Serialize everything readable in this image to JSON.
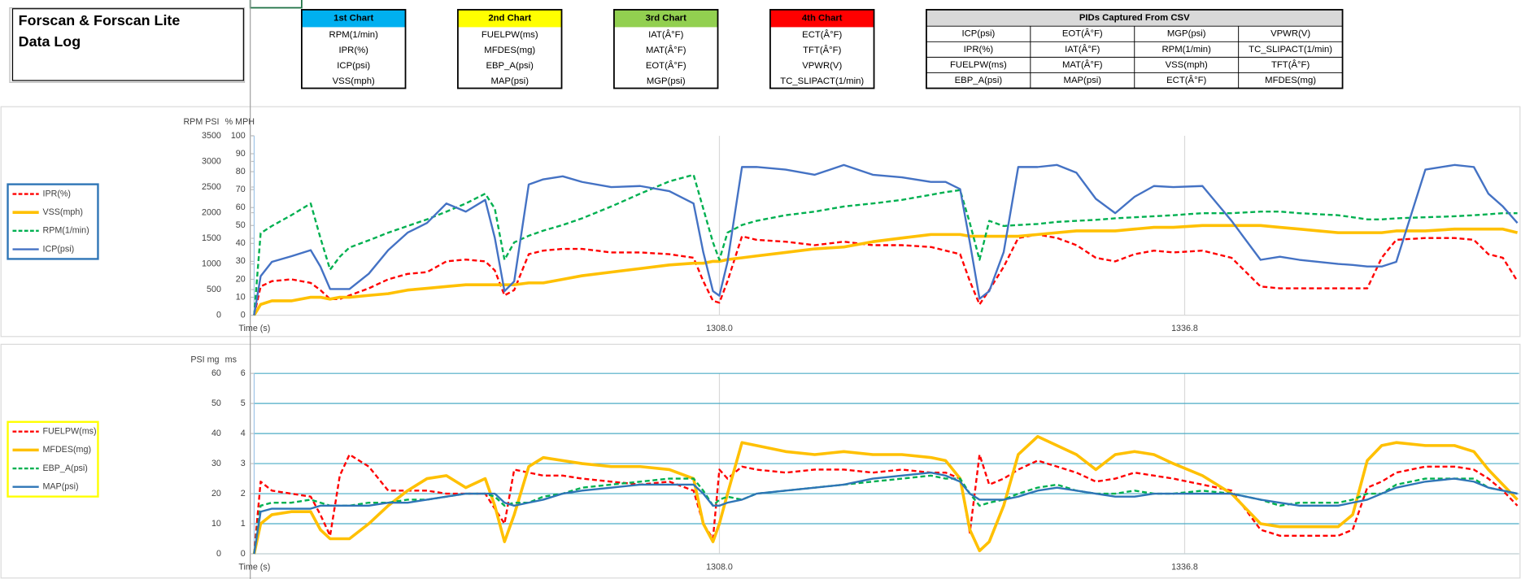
{
  "header": {
    "title": [
      "Forscan & Forscan Lite",
      "Data Log"
    ],
    "chart_boxes": [
      {
        "title": "1st Chart",
        "color": "#00b0f0",
        "items": [
          "RPM(1/min)",
          "IPR(%)",
          "ICP(psi)",
          "VSS(mph)"
        ]
      },
      {
        "title": "2nd Chart",
        "color": "#ffff00",
        "items": [
          "FUELPW(ms)",
          "MFDES(mg)",
          "EBP_A(psi)",
          "MAP(psi)"
        ]
      },
      {
        "title": "3rd Chart",
        "color": "#92d050",
        "items": [
          "IAT(Â°F)",
          "MAT(Â°F)",
          "EOT(Â°F)",
          "MGP(psi)"
        ]
      },
      {
        "title": "4th Chart",
        "color": "#ff0000",
        "items": [
          "ECT(Â°F)",
          "TFT(Â°F)",
          "VPWR(V)",
          "TC_SLIPACT(1/min)"
        ]
      }
    ],
    "pid_table": {
      "title": "PIDs Captured From CSV",
      "rows": [
        [
          "ICP(psi)",
          "EOT(Â°F)",
          "MGP(psi)",
          "VPWR(V)"
        ],
        [
          "IPR(%)",
          "IAT(Â°F)",
          "RPM(1/min)",
          "TC_SLIPACT(1/min)"
        ],
        [
          "FUELPW(ms)",
          "MAT(Â°F)",
          "VSS(mph)",
          "TFT(Â°F)"
        ],
        [
          "EBP_A(psi)",
          "MAP(psi)",
          "ECT(Â°F)",
          "MFDES(mg)"
        ]
      ]
    }
  },
  "chart_data": [
    {
      "type": "line",
      "ylabel": "RPM PSI",
      "y2label": "% MPH",
      "xlabel": "Time (s)",
      "legend": "left",
      "legend_color": "#2e75b6",
      "grid": false,
      "grid_color": "#4bacc6",
      "x": [
        1279.2,
        1279.6,
        1280.3,
        1281.5,
        1282.7,
        1283.3,
        1283.9,
        1284.5,
        1285.1,
        1286.3,
        1287.5,
        1288.7,
        1289.9,
        1291.1,
        1292.3,
        1293.5,
        1294.1,
        1294.7,
        1295.3,
        1296.2,
        1297.1,
        1298.3,
        1299.5,
        1301.3,
        1303.1,
        1304.9,
        1306.4,
        1307.0,
        1307.6,
        1308.0,
        1308.5,
        1309.4,
        1310.3,
        1312.1,
        1313.9,
        1315.7,
        1317.5,
        1319.3,
        1321.1,
        1322.0,
        1322.9,
        1323.5,
        1324.1,
        1324.7,
        1325.6,
        1326.5,
        1327.7,
        1328.9,
        1330.1,
        1331.3,
        1332.5,
        1333.7,
        1334.9,
        1336.1,
        1337.9,
        1339.7,
        1341.5,
        1342.7,
        1343.9,
        1345.1,
        1346.3,
        1347.2,
        1348.1,
        1349.0,
        1349.9,
        1351.7,
        1353.5,
        1354.7,
        1355.6,
        1356.5,
        1357.4
      ],
      "xlim": [
        1279.2,
        1357.5
      ],
      "xticks": [
        {
          "value": 1308,
          "label": "1308.0"
        },
        {
          "value": 1336.8,
          "label": "1336.8"
        }
      ],
      "ylim": [
        0,
        3500
      ],
      "yticks": [
        0,
        500,
        1000,
        1500,
        2000,
        2500,
        3000,
        3500
      ],
      "y2lim": [
        0,
        100
      ],
      "y2ticks": [
        0,
        10,
        20,
        30,
        40,
        50,
        60,
        70,
        80,
        90,
        100
      ],
      "series": [
        {
          "name": "IPR(%)",
          "color": "#ff0000",
          "line_style": "dashed",
          "axis": "y2",
          "values": [
            0,
            16,
            19,
            20,
            18,
            14,
            9,
            9,
            11,
            15,
            20,
            23,
            24,
            30,
            31,
            30,
            25,
            11,
            14,
            34,
            36,
            37,
            37,
            35,
            35,
            34,
            32,
            19,
            8,
            7,
            19,
            44,
            42,
            41,
            39,
            41,
            39,
            39,
            38,
            36,
            34,
            19,
            6,
            14,
            27,
            43,
            45,
            43,
            39,
            32,
            30,
            34,
            36,
            35,
            36,
            32,
            16,
            15,
            15,
            15,
            15,
            15,
            15,
            32,
            42,
            43,
            43,
            42,
            34,
            32,
            19
          ]
        },
        {
          "name": "VSS(mph)",
          "color": "#ffc000",
          "line_style": "thick",
          "axis": "y2",
          "values": [
            0,
            6,
            8,
            8,
            10,
            10,
            9,
            10,
            10,
            11,
            12,
            14,
            15,
            16,
            17,
            17,
            17,
            17,
            17,
            18,
            18,
            20,
            22,
            24,
            26,
            28,
            29,
            29,
            30,
            30,
            31,
            32,
            33,
            35,
            37,
            38,
            41,
            43,
            45,
            45,
            45,
            44,
            44,
            44,
            44,
            44,
            45,
            46,
            47,
            47,
            47,
            48,
            49,
            49,
            50,
            50,
            50,
            49,
            48,
            47,
            46,
            46,
            46,
            46,
            47,
            47,
            48,
            48,
            48,
            48,
            46
          ]
        },
        {
          "name": "RPM(1/min)",
          "color": "#00b050",
          "line_style": "dashed",
          "axis": "y",
          "values": [
            0,
            1600,
            1740,
            1950,
            2180,
            1510,
            890,
            1140,
            1320,
            1460,
            1610,
            1740,
            1870,
            2020,
            2180,
            2370,
            2080,
            1080,
            1420,
            1550,
            1650,
            1760,
            1890,
            2120,
            2370,
            2610,
            2740,
            2080,
            1420,
            1080,
            1610,
            1760,
            1840,
            1950,
            2020,
            2120,
            2180,
            2250,
            2350,
            2400,
            2440,
            1800,
            1080,
            1840,
            1740,
            1760,
            1780,
            1820,
            1840,
            1860,
            1890,
            1910,
            1930,
            1950,
            1990,
            1990,
            2020,
            2020,
            1990,
            1970,
            1950,
            1910,
            1870,
            1870,
            1890,
            1910,
            1930,
            1950,
            1970,
            1990,
            1990
          ]
        },
        {
          "name": "ICP(psi)",
          "color": "#4472c4",
          "line_style": "solid",
          "axis": "y",
          "values": [
            0,
            760,
            1040,
            1150,
            1270,
            950,
            510,
            510,
            510,
            810,
            1270,
            1610,
            1800,
            2180,
            2020,
            2250,
            1510,
            470,
            660,
            2550,
            2650,
            2710,
            2600,
            2500,
            2520,
            2420,
            2180,
            1230,
            470,
            380,
            1040,
            2890,
            2890,
            2840,
            2740,
            2930,
            2740,
            2690,
            2600,
            2600,
            2460,
            1420,
            320,
            470,
            1230,
            2890,
            2890,
            2930,
            2780,
            2270,
            1990,
            2310,
            2520,
            2500,
            2520,
            1840,
            1080,
            1140,
            1080,
            1040,
            1000,
            980,
            950,
            950,
            1040,
            2840,
            2930,
            2890,
            2370,
            2120,
            1800
          ]
        }
      ]
    },
    {
      "type": "line",
      "ylabel": "PSI mg",
      "y2label": "ms",
      "xlabel": "Time (s)",
      "legend": "left",
      "legend_color": "#ffff00",
      "grid": true,
      "grid_color": "#4bacc6",
      "x": [
        1279.2,
        1279.6,
        1280.3,
        1281.5,
        1282.7,
        1283.3,
        1283.9,
        1284.5,
        1285.1,
        1286.3,
        1287.5,
        1288.7,
        1289.9,
        1291.1,
        1292.3,
        1293.5,
        1294.1,
        1294.7,
        1295.3,
        1296.2,
        1297.1,
        1298.3,
        1299.5,
        1301.3,
        1303.1,
        1304.9,
        1306.4,
        1307.0,
        1307.6,
        1308.0,
        1308.5,
        1309.4,
        1310.3,
        1312.1,
        1313.9,
        1315.7,
        1317.5,
        1319.3,
        1321.1,
        1322.0,
        1322.9,
        1323.5,
        1324.1,
        1324.7,
        1325.6,
        1326.5,
        1327.7,
        1328.9,
        1330.1,
        1331.3,
        1332.5,
        1333.7,
        1334.9,
        1336.1,
        1337.9,
        1339.7,
        1341.5,
        1342.7,
        1343.9,
        1345.1,
        1346.3,
        1347.2,
        1348.1,
        1349.0,
        1349.9,
        1351.7,
        1353.5,
        1354.7,
        1355.6,
        1356.5,
        1357.4
      ],
      "xlim": [
        1279.2,
        1357.5
      ],
      "xticks": [
        {
          "value": 1308,
          "label": "1308.0"
        },
        {
          "value": 1336.8,
          "label": "1336.8"
        }
      ],
      "ylim": [
        0,
        60
      ],
      "yticks": [
        0,
        10,
        20,
        30,
        40,
        50,
        60
      ],
      "y2lim": [
        0,
        6
      ],
      "y2ticks": [
        0,
        1,
        2,
        3,
        4,
        5,
        6
      ],
      "series": [
        {
          "name": "FUELPW(ms)",
          "color": "#ff0000",
          "line_style": "dashed",
          "axis": "y2",
          "values": [
            0,
            2.4,
            2.1,
            2.0,
            1.9,
            1.3,
            0.6,
            2.6,
            3.3,
            2.9,
            2.1,
            2.1,
            2.1,
            2.0,
            2.0,
            2.0,
            1.5,
            1.0,
            2.8,
            2.7,
            2.6,
            2.6,
            2.5,
            2.4,
            2.3,
            2.4,
            2.1,
            1.0,
            0.5,
            2.8,
            2.5,
            2.9,
            2.8,
            2.7,
            2.8,
            2.8,
            2.7,
            2.8,
            2.7,
            2.7,
            2.5,
            0.7,
            3.3,
            2.3,
            2.5,
            2.8,
            3.1,
            2.9,
            2.7,
            2.4,
            2.5,
            2.7,
            2.6,
            2.5,
            2.3,
            2.1,
            0.8,
            0.6,
            0.6,
            0.6,
            0.6,
            0.8,
            2.2,
            2.4,
            2.7,
            2.9,
            2.9,
            2.8,
            2.5,
            2.1,
            1.6
          ]
        },
        {
          "name": "MFDES(mg)",
          "color": "#ffc000",
          "line_style": "thick",
          "axis": "y",
          "values": [
            0,
            10,
            13,
            14,
            14,
            8,
            5,
            5,
            5,
            10,
            16,
            21,
            25,
            26,
            22,
            25,
            16,
            4,
            13,
            29,
            32,
            31,
            30,
            29,
            29,
            28,
            25,
            10,
            4,
            10,
            20,
            37,
            36,
            34,
            33,
            34,
            33,
            33,
            32,
            31,
            25,
            8,
            1,
            4,
            16,
            33,
            39,
            36,
            33,
            28,
            33,
            34,
            33,
            30,
            26,
            20,
            10,
            9,
            9,
            9,
            9,
            13,
            31,
            36,
            37,
            36,
            36,
            34,
            28,
            23,
            18
          ]
        },
        {
          "name": "EBP_A(psi)",
          "color": "#00b050",
          "line_style": "dashed",
          "axis": "y",
          "values": [
            0,
            16,
            17,
            17,
            18,
            17,
            16,
            16,
            16,
            17,
            17,
            18,
            18,
            19,
            20,
            20,
            19,
            16,
            17,
            17,
            19,
            20,
            22,
            23,
            24,
            25,
            25,
            21,
            16,
            18,
            19,
            18,
            20,
            21,
            22,
            23,
            24,
            25,
            26,
            25,
            25,
            20,
            16,
            17,
            18,
            20,
            22,
            23,
            21,
            20,
            20,
            21,
            20,
            20,
            21,
            20,
            18,
            16,
            17,
            17,
            17,
            18,
            20,
            20,
            23,
            25,
            25,
            25,
            22,
            21,
            20
          ]
        },
        {
          "name": "MAP(psi)",
          "color": "#2e75b6",
          "line_style": "solid",
          "axis": "y",
          "values": [
            0,
            14,
            15,
            15,
            15,
            16,
            16,
            16,
            16,
            16,
            17,
            17,
            18,
            19,
            20,
            20,
            20,
            17,
            16,
            17,
            18,
            20,
            21,
            22,
            23,
            23,
            23,
            20,
            16,
            16,
            17,
            18,
            20,
            21,
            22,
            23,
            25,
            26,
            27,
            26,
            24,
            20,
            18,
            18,
            18,
            19,
            21,
            22,
            21,
            20,
            19,
            19,
            20,
            20,
            20,
            20,
            18,
            17,
            16,
            16,
            16,
            17,
            18,
            20,
            22,
            24,
            25,
            24,
            22,
            21,
            20
          ]
        }
      ]
    }
  ]
}
